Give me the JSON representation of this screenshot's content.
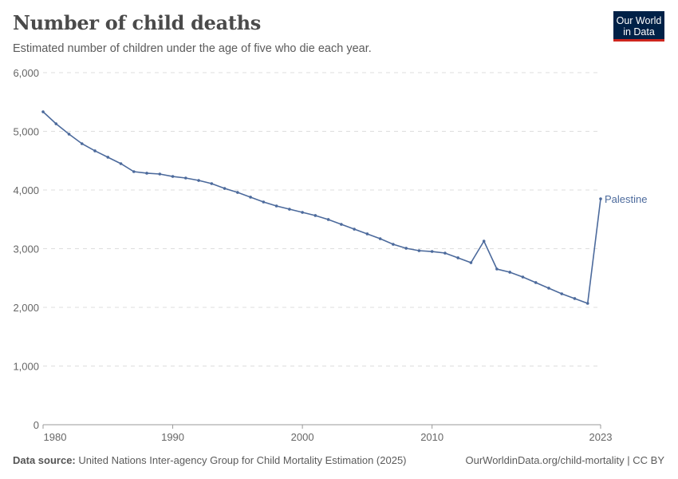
{
  "header": {
    "title": "Number of child deaths",
    "subtitle": "Estimated number of children under the age of five who die each year.",
    "logo": "Our World in Data"
  },
  "footer": {
    "source_label": "Data source:",
    "source": "United Nations Inter-agency Group for Child Mortality Estimation (2025)",
    "link": "OurWorldinData.org/child-mortality | CC BY"
  },
  "colors": {
    "series": "#4c6a9c",
    "grid": "#dddddd",
    "logo_bg": "#002147",
    "logo_accent": "#ce261e"
  },
  "chart_data": {
    "type": "line",
    "title": "Number of child deaths",
    "ylim": [
      0,
      6000
    ],
    "xlim": [
      1980,
      2023
    ],
    "yticks": [
      0,
      1000,
      2000,
      3000,
      4000,
      5000,
      6000
    ],
    "ytick_labels": [
      "0",
      "1,000",
      "2,000",
      "3,000",
      "4,000",
      "5,000",
      "6,000"
    ],
    "xticks": [
      1980,
      1990,
      2000,
      2010,
      2023
    ],
    "xtick_labels": [
      "1980",
      "1990",
      "2000",
      "2010",
      "2023"
    ],
    "grid": "horizontal dashed",
    "series": [
      {
        "name": "Palestine",
        "x": [
          1980,
          1981,
          1982,
          1983,
          1984,
          1985,
          1986,
          1987,
          1988,
          1989,
          1990,
          1991,
          1992,
          1993,
          1994,
          1995,
          1996,
          1997,
          1998,
          1999,
          2000,
          2001,
          2002,
          2003,
          2004,
          2005,
          2006,
          2007,
          2008,
          2009,
          2010,
          2011,
          2012,
          2013,
          2014,
          2015,
          2016,
          2017,
          2018,
          2019,
          2020,
          2021,
          2022,
          2023
        ],
        "values": [
          5333,
          5129,
          4952,
          4789,
          4667,
          4558,
          4449,
          4313,
          4286,
          4272,
          4231,
          4204,
          4163,
          4109,
          4027,
          3959,
          3878,
          3796,
          3728,
          3673,
          3619,
          3565,
          3497,
          3415,
          3333,
          3252,
          3170,
          3075,
          3007,
          2966,
          2952,
          2925,
          2844,
          2762,
          3129,
          2653,
          2599,
          2517,
          2422,
          2327,
          2231,
          2150,
          2068,
          3850
        ]
      }
    ]
  }
}
